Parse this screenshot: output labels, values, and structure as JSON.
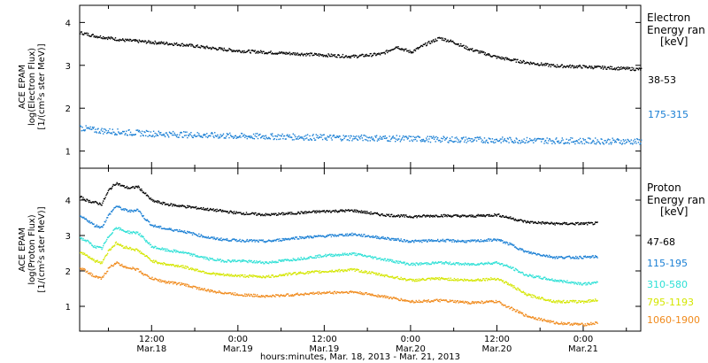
{
  "chart_data": [
    {
      "type": "scatter",
      "ylabel_lines": [
        "ACE EPAM",
        "log(Electron Flux)",
        "[1/(cm²s ster MeV)]"
      ],
      "legend_title_lines": [
        "Electron",
        "Energy ran",
        "[keV]"
      ],
      "ylim": [
        0.6,
        4.4
      ],
      "yticks": [
        1,
        2,
        3,
        4
      ],
      "series": [
        {
          "name": "38-53",
          "color": "#000000",
          "points": [
            [
              -8,
              3.9
            ],
            [
              -6,
              3.85
            ],
            [
              -4,
              3.8
            ],
            [
              -3,
              3.88
            ],
            [
              -2,
              3.95
            ],
            [
              0,
              3.85
            ],
            [
              4,
              3.7
            ],
            [
              8,
              3.6
            ],
            [
              12,
              3.55
            ],
            [
              16,
              3.5
            ],
            [
              20,
              3.42
            ],
            [
              24,
              3.35
            ],
            [
              30,
              3.3
            ],
            [
              36,
              3.25
            ],
            [
              40,
              3.22
            ],
            [
              44,
              3.28
            ],
            [
              46,
              3.45
            ],
            [
              47,
              3.38
            ],
            [
              48,
              3.32
            ],
            [
              50,
              3.5
            ],
            [
              52,
              3.65
            ],
            [
              54,
              3.55
            ],
            [
              56,
              3.4
            ],
            [
              60,
              3.2
            ],
            [
              64,
              3.08
            ],
            [
              68,
              3.0
            ],
            [
              72,
              2.98
            ],
            [
              76,
              2.95
            ],
            [
              80,
              2.92
            ],
            [
              84,
              2.9
            ],
            [
              88,
              2.9
            ]
          ]
        },
        {
          "name": "175-315",
          "color": "#1a7fd4",
          "points": [
            [
              -8,
              1.65
            ],
            [
              -4,
              1.58
            ],
            [
              -2,
              1.55
            ],
            [
              0,
              1.62
            ],
            [
              4,
              1.5
            ],
            [
              8,
              1.45
            ],
            [
              12,
              1.42
            ],
            [
              16,
              1.4
            ],
            [
              20,
              1.38
            ],
            [
              24,
              1.36
            ],
            [
              30,
              1.35
            ],
            [
              36,
              1.33
            ],
            [
              42,
              1.32
            ],
            [
              48,
              1.3
            ],
            [
              54,
              1.28
            ],
            [
              60,
              1.27
            ],
            [
              66,
              1.26
            ],
            [
              72,
              1.25
            ],
            [
              78,
              1.24
            ],
            [
              84,
              1.22
            ],
            [
              88,
              1.2
            ]
          ]
        }
      ]
    },
    {
      "type": "scatter",
      "ylabel_lines": [
        "ACE EPAM",
        "log(Proton Flux)",
        "[1/(cm²s ster MeV)]"
      ],
      "legend_title_lines": [
        "Proton",
        "Energy ran",
        "[keV]"
      ],
      "ylim": [
        0.3,
        4.9
      ],
      "yticks": [
        1,
        2,
        3,
        4
      ],
      "xticks": [
        {
          "t": 12,
          "top": "12:00",
          "bottom": "Mar.18"
        },
        {
          "t": 24,
          "top": "0:00",
          "bottom": "Mar.19"
        },
        {
          "t": 36,
          "top": "12:00",
          "bottom": "Mar.19"
        },
        {
          "t": 48,
          "top": "0:00",
          "bottom": "Mar.20"
        },
        {
          "t": 60,
          "top": "12:00",
          "bottom": "Mar.20"
        },
        {
          "t": 72,
          "top": "0:00",
          "bottom": "Mar.21"
        }
      ],
      "xlim": [
        2,
        80
      ],
      "xlabel": "hours:minutes, Mar. 18, 2013 - Mar. 21, 2013",
      "series": [
        {
          "name": "47-68",
          "color": "#000000",
          "points": [
            [
              2,
              4.1
            ],
            [
              3,
              4.0
            ],
            [
              4,
              3.95
            ],
            [
              5,
              3.9
            ],
            [
              6,
              4.3
            ],
            [
              7,
              4.5
            ],
            [
              8,
              4.4
            ],
            [
              9,
              4.35
            ],
            [
              10,
              4.4
            ],
            [
              11,
              4.2
            ],
            [
              12,
              4.0
            ],
            [
              14,
              3.9
            ],
            [
              16,
              3.85
            ],
            [
              18,
              3.8
            ],
            [
              20,
              3.75
            ],
            [
              22,
              3.7
            ],
            [
              24,
              3.65
            ],
            [
              28,
              3.6
            ],
            [
              32,
              3.65
            ],
            [
              36,
              3.7
            ],
            [
              40,
              3.72
            ],
            [
              44,
              3.6
            ],
            [
              48,
              3.55
            ],
            [
              52,
              3.58
            ],
            [
              56,
              3.56
            ],
            [
              60,
              3.6
            ],
            [
              62,
              3.5
            ],
            [
              64,
              3.4
            ],
            [
              68,
              3.35
            ],
            [
              72,
              3.35
            ],
            [
              74,
              3.36
            ]
          ]
        },
        {
          "name": "115-195",
          "color": "#1a7fd4",
          "points": [
            [
              2,
              3.55
            ],
            [
              3,
              3.45
            ],
            [
              4,
              3.3
            ],
            [
              5,
              3.25
            ],
            [
              6,
              3.6
            ],
            [
              7,
              3.85
            ],
            [
              8,
              3.75
            ],
            [
              9,
              3.7
            ],
            [
              10,
              3.75
            ],
            [
              11,
              3.5
            ],
            [
              12,
              3.3
            ],
            [
              14,
              3.2
            ],
            [
              16,
              3.15
            ],
            [
              18,
              3.05
            ],
            [
              20,
              2.95
            ],
            [
              22,
              2.9
            ],
            [
              24,
              2.88
            ],
            [
              28,
              2.85
            ],
            [
              32,
              2.95
            ],
            [
              36,
              3.0
            ],
            [
              40,
              3.05
            ],
            [
              44,
              2.95
            ],
            [
              48,
              2.85
            ],
            [
              52,
              2.88
            ],
            [
              56,
              2.85
            ],
            [
              60,
              2.9
            ],
            [
              62,
              2.75
            ],
            [
              64,
              2.55
            ],
            [
              68,
              2.4
            ],
            [
              72,
              2.4
            ],
            [
              74,
              2.42
            ]
          ]
        },
        {
          "name": "310-580",
          "color": "#2ee0d6",
          "points": [
            [
              2,
              2.95
            ],
            [
              3,
              2.85
            ],
            [
              4,
              2.7
            ],
            [
              5,
              2.65
            ],
            [
              6,
              3.0
            ],
            [
              7,
              3.25
            ],
            [
              8,
              3.15
            ],
            [
              9,
              3.1
            ],
            [
              10,
              3.1
            ],
            [
              11,
              2.9
            ],
            [
              12,
              2.7
            ],
            [
              14,
              2.6
            ],
            [
              16,
              2.55
            ],
            [
              18,
              2.45
            ],
            [
              20,
              2.35
            ],
            [
              22,
              2.3
            ],
            [
              24,
              2.3
            ],
            [
              28,
              2.25
            ],
            [
              32,
              2.35
            ],
            [
              36,
              2.45
            ],
            [
              40,
              2.5
            ],
            [
              44,
              2.35
            ],
            [
              48,
              2.2
            ],
            [
              52,
              2.25
            ],
            [
              56,
              2.2
            ],
            [
              60,
              2.25
            ],
            [
              62,
              2.1
            ],
            [
              64,
              1.9
            ],
            [
              68,
              1.75
            ],
            [
              72,
              1.65
            ],
            [
              74,
              1.68
            ]
          ]
        },
        {
          "name": "795-1193",
          "color": "#d4e600",
          "points": [
            [
              2,
              2.55
            ],
            [
              3,
              2.45
            ],
            [
              4,
              2.3
            ],
            [
              5,
              2.25
            ],
            [
              6,
              2.6
            ],
            [
              7,
              2.8
            ],
            [
              8,
              2.7
            ],
            [
              9,
              2.65
            ],
            [
              10,
              2.6
            ],
            [
              11,
              2.45
            ],
            [
              12,
              2.3
            ],
            [
              14,
              2.2
            ],
            [
              16,
              2.15
            ],
            [
              18,
              2.05
            ],
            [
              20,
              1.95
            ],
            [
              22,
              1.9
            ],
            [
              24,
              1.88
            ],
            [
              28,
              1.85
            ],
            [
              32,
              1.95
            ],
            [
              36,
              2.0
            ],
            [
              40,
              2.05
            ],
            [
              44,
              1.9
            ],
            [
              48,
              1.75
            ],
            [
              52,
              1.8
            ],
            [
              56,
              1.75
            ],
            [
              60,
              1.8
            ],
            [
              62,
              1.6
            ],
            [
              64,
              1.35
            ],
            [
              68,
              1.15
            ],
            [
              72,
              1.15
            ],
            [
              74,
              1.2
            ]
          ]
        },
        {
          "name": "1060-1900",
          "color": "#f08a1c",
          "points": [
            [
              2,
              2.1
            ],
            [
              3,
              2.0
            ],
            [
              4,
              1.85
            ],
            [
              5,
              1.8
            ],
            [
              6,
              2.1
            ],
            [
              7,
              2.25
            ],
            [
              8,
              2.15
            ],
            [
              9,
              2.1
            ],
            [
              10,
              2.05
            ],
            [
              11,
              1.9
            ],
            [
              12,
              1.8
            ],
            [
              14,
              1.7
            ],
            [
              16,
              1.65
            ],
            [
              18,
              1.55
            ],
            [
              20,
              1.45
            ],
            [
              22,
              1.4
            ],
            [
              24,
              1.35
            ],
            [
              28,
              1.3
            ],
            [
              32,
              1.35
            ],
            [
              36,
              1.4
            ],
            [
              40,
              1.42
            ],
            [
              44,
              1.3
            ],
            [
              48,
              1.15
            ],
            [
              52,
              1.18
            ],
            [
              56,
              1.12
            ],
            [
              60,
              1.15
            ],
            [
              62,
              0.95
            ],
            [
              64,
              0.75
            ],
            [
              68,
              0.55
            ],
            [
              72,
              0.5
            ],
            [
              74,
              0.55
            ]
          ]
        }
      ]
    }
  ]
}
